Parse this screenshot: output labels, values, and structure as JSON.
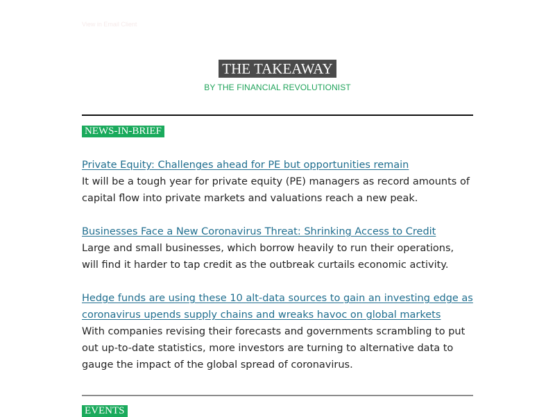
{
  "preheader": "View in Email Client",
  "masthead": {
    "title": "THE TAKEAWAY",
    "byline": "BY THE FINANCIAL REVOLUTIONIST"
  },
  "news": {
    "label": "NEWS-IN-BRIEF",
    "articles": [
      {
        "headline": "Private Equity: Challenges ahead for PE but opportunities remain",
        "summary": "It will be a tough year for private equity (PE) managers as record amounts of capital flow into private markets and valuations reach a new peak."
      },
      {
        "headline": "Businesses Face a New Coronavirus Threat: Shrinking Access to Credit",
        "summary": "Large and small businesses, which borrow heavily to run their operations, will find it harder to tap credit as the outbreak curtails economic activity."
      },
      {
        "headline": "Hedge funds are using these 10 alt-data sources to gain an investing edge as coronavirus upends supply chains and wreaks havoc on global markets",
        "summary": "With companies revising their forecasts and governments scrambling to put out up-to-date statistics, more investors are turning to alternative data to gauge the impact of the global spread of coronavirus."
      }
    ]
  },
  "events": {
    "label": "EVENTS"
  },
  "colors": {
    "accent_green": "#1aaa5c",
    "link_blue": "#1f6e8f",
    "title_bg": "#4a4a4a"
  }
}
